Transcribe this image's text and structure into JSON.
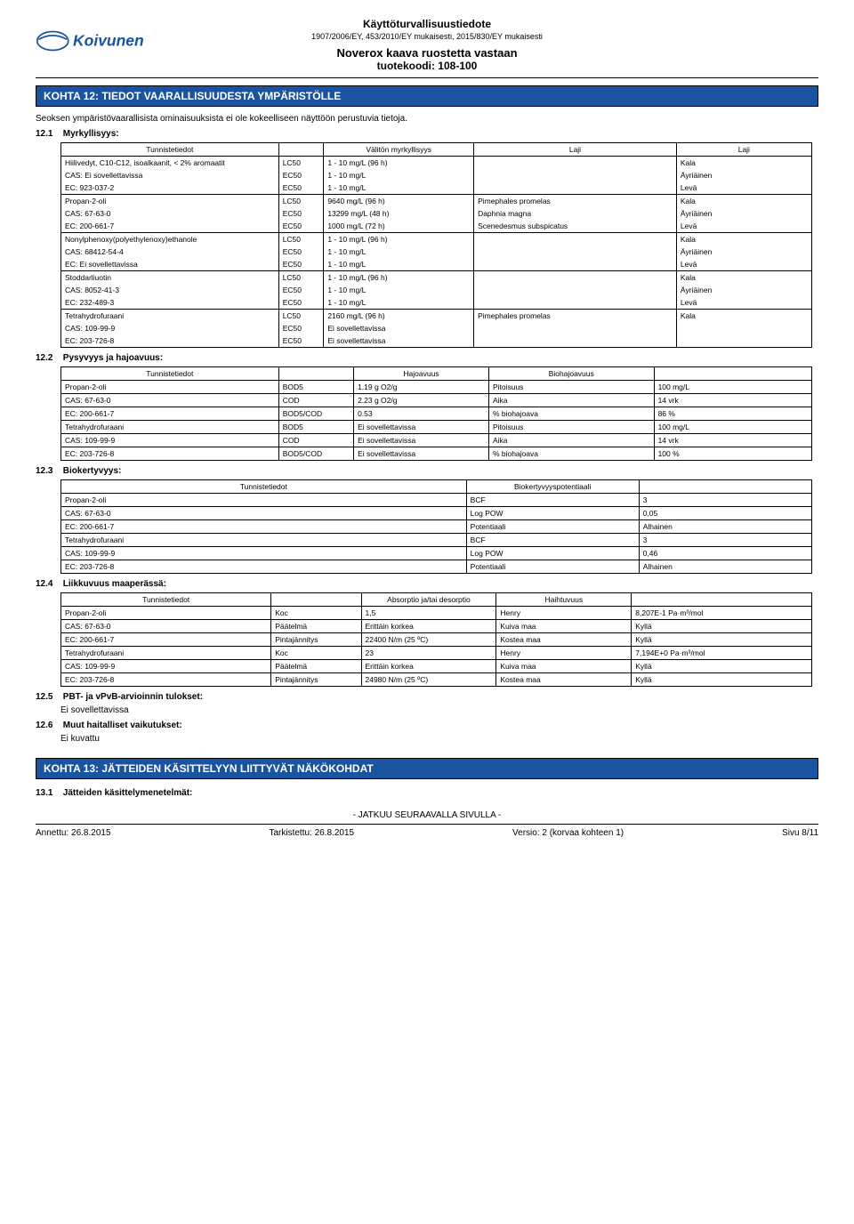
{
  "header": {
    "title1": "Käyttöturvallisuustiedote",
    "subtitle": "1907/2006/EY, 453/2010/EY mukaisesti, 2015/830/EY mukaisesti",
    "product": "Noverox kaava ruostetta vastaan",
    "code": "tuotekoodi: 108-100",
    "logo_text": "Koivunen"
  },
  "section12": {
    "bar": "KOHTA 12: TIEDOT VAARALLISUUDESTA YMPÄRISTÖLLE",
    "intro": "Seoksen ympäristövaarallisista ominaisuuksista ei ole kokeelliseen näyttöön perustuvia tietoja.",
    "s1": {
      "num": "12.1",
      "title": "Myrkyllisyys:"
    },
    "tox_head": {
      "id": "Tunnistetiedot",
      "val": "Välitön myrkyllisyys",
      "sp": "Laji",
      "g": "Laji"
    },
    "tox": [
      {
        "rows": [
          {
            "id": "Hiilivedyt, C10-C12, isoalkaanit, < 2% aromaatit",
            "t": "LC50",
            "v": "1 - 10 mg/L (96 h)",
            "sp": "",
            "g": "Kala"
          },
          {
            "id": "CAS: Ei sovellettavissa",
            "t": "EC50",
            "v": "1 - 10 mg/L",
            "sp": "",
            "g": "Äyriäinen"
          },
          {
            "id": "EC: 923-037-2",
            "t": "EC50",
            "v": "1 - 10 mg/L",
            "sp": "",
            "g": "Levä"
          }
        ]
      },
      {
        "rows": [
          {
            "id": "Propan-2-oli",
            "t": "LC50",
            "v": "9640 mg/L (96 h)",
            "sp": "Pimephales promelas",
            "g": "Kala"
          },
          {
            "id": "CAS: 67-63-0",
            "t": "EC50",
            "v": "13299 mg/L (48 h)",
            "sp": "Daphnia magna",
            "g": "Äyriäinen"
          },
          {
            "id": "EC: 200-661-7",
            "t": "EC50",
            "v": "1000 mg/L (72 h)",
            "sp": "Scenedesmus subspicatus",
            "g": "Levä"
          }
        ]
      },
      {
        "rows": [
          {
            "id": "Nonylphenoxy(polyethylenoxy)ethanole",
            "t": "LC50",
            "v": "1 - 10 mg/L (96 h)",
            "sp": "",
            "g": "Kala"
          },
          {
            "id": "CAS: 68412-54-4",
            "t": "EC50",
            "v": "1 - 10 mg/L",
            "sp": "",
            "g": "Äyriäinen"
          },
          {
            "id": "EC: Ei sovellettavissa",
            "t": "EC50",
            "v": "1 - 10 mg/L",
            "sp": "",
            "g": "Levä"
          }
        ]
      },
      {
        "rows": [
          {
            "id": "Stoddarliuotin",
            "t": "LC50",
            "v": "1 - 10 mg/L (96 h)",
            "sp": "",
            "g": "Kala"
          },
          {
            "id": "CAS: 8052-41-3",
            "t": "EC50",
            "v": "1 - 10 mg/L",
            "sp": "",
            "g": "Äyriäinen"
          },
          {
            "id": "EC: 232-489-3",
            "t": "EC50",
            "v": "1 - 10 mg/L",
            "sp": "",
            "g": "Levä"
          }
        ]
      },
      {
        "rows": [
          {
            "id": "Tetrahydrofuraani",
            "t": "LC50",
            "v": "2160 mg/L (96 h)",
            "sp": "Pimephales promelas",
            "g": "Kala"
          },
          {
            "id": "CAS: 109-99-9",
            "t": "EC50",
            "v": "Ei sovellettavissa",
            "sp": "",
            "g": ""
          },
          {
            "id": "EC: 203-726-8",
            "t": "EC50",
            "v": "Ei sovellettavissa",
            "sp": "",
            "g": ""
          }
        ]
      }
    ],
    "s2": {
      "num": "12.2",
      "title": "Pysyvyys ja hajoavuus:"
    },
    "deg_head": {
      "id": "Tunnistetiedot",
      "h": "Hajoavuus",
      "b": "Biohajoavuus"
    },
    "deg": [
      {
        "rows": [
          {
            "id": "Propan-2-oli",
            "t": "BOD5",
            "v": "1.19 g O2/g",
            "bl": "Pitoisuus",
            "bv": "100 mg/L"
          },
          {
            "id": "CAS: 67-63-0",
            "t": "COD",
            "v": "2.23 g O2/g",
            "bl": "Aika",
            "bv": "14 vrk"
          },
          {
            "id": "EC: 200-661-7",
            "t": "BOD5/COD",
            "v": "0.53",
            "bl": "% biohajoava",
            "bv": "86 %"
          }
        ]
      },
      {
        "rows": [
          {
            "id": "Tetrahydrofuraani",
            "t": "BOD5",
            "v": "Ei sovellettavissa",
            "bl": "Pitoisuus",
            "bv": "100 mg/L"
          },
          {
            "id": "CAS: 109-99-9",
            "t": "COD",
            "v": "Ei sovellettavissa",
            "bl": "Aika",
            "bv": "14 vrk"
          },
          {
            "id": "EC: 203-726-8",
            "t": "BOD5/COD",
            "v": "Ei sovellettavissa",
            "bl": "% biohajoava",
            "bv": "100 %"
          }
        ]
      }
    ],
    "s3": {
      "num": "12.3",
      "title": "Biokertyvyys:"
    },
    "bio_head": {
      "id": "Tunnistetiedot",
      "p": "Biokertyvyyspotentiaali"
    },
    "bio": [
      {
        "rows": [
          {
            "id": "Propan-2-oli",
            "l": "BCF",
            "v": "3"
          },
          {
            "id": "CAS: 67-63-0",
            "l": "Log POW",
            "v": "0,05"
          },
          {
            "id": "EC: 200-661-7",
            "l": "Potentiaali",
            "v": "Alhainen"
          }
        ]
      },
      {
        "rows": [
          {
            "id": "Tetrahydrofuraani",
            "l": "BCF",
            "v": "3"
          },
          {
            "id": "CAS: 109-99-9",
            "l": "Log POW",
            "v": "0,46"
          },
          {
            "id": "EC: 203-726-8",
            "l": "Potentiaali",
            "v": "Alhainen"
          }
        ]
      }
    ],
    "s4": {
      "num": "12.4",
      "title": "Liikkuvuus maaperässä:"
    },
    "mob_head": {
      "id": "Tunnistetiedot",
      "a": "Absorptio ja/tai desorptio",
      "h": "Haihtuvuus"
    },
    "mob": [
      {
        "rows": [
          {
            "id": "Propan-2-oli",
            "al": "Koc",
            "av": "1,5",
            "hl": "Henry",
            "hv": "8,207E-1 Pa·m³/mol"
          },
          {
            "id": "CAS: 67-63-0",
            "al": "Päätelmä",
            "av": "Erittäin korkea",
            "hl": "Kuiva maa",
            "hv": "Kyllä"
          },
          {
            "id": "EC: 200-661-7",
            "al": "Pintajännitys",
            "av": "22400 N/m  (25 ºC)",
            "hl": "Kostea maa",
            "hv": "Kyllä"
          }
        ]
      },
      {
        "rows": [
          {
            "id": "Tetrahydrofuraani",
            "al": "Koc",
            "av": "23",
            "hl": "Henry",
            "hv": "7,194E+0 Pa·m³/mol"
          },
          {
            "id": "CAS: 109-99-9",
            "al": "Päätelmä",
            "av": "Erittäin korkea",
            "hl": "Kuiva maa",
            "hv": "Kyllä"
          },
          {
            "id": "EC: 203-726-8",
            "al": "Pintajännitys",
            "av": "24980 N/m  (25 ºC)",
            "hl": "Kostea maa",
            "hv": "Kyllä"
          }
        ]
      }
    ],
    "s5": {
      "num": "12.5",
      "title": "PBT- ja vPvB-arvioinnin tulokset:",
      "text": "Ei sovellettavissa"
    },
    "s6": {
      "num": "12.6",
      "title": "Muut haitalliset vaikutukset:",
      "text": "Ei kuvattu"
    }
  },
  "section13": {
    "bar": "KOHTA 13: JÄTTEIDEN KÄSITTELYYN LIITTYVÄT NÄKÖKOHDAT",
    "s1": {
      "num": "13.1",
      "title": "Jätteiden käsittelymenetelmät:"
    }
  },
  "footer": {
    "cont": "- JATKUU SEURAAVALLA SIVULLA -",
    "issued": "Annettu: 26.8.2015",
    "checked": "Tarkistettu: 26.8.2015",
    "version": "Versio: 2 (korvaa kohteen 1)",
    "page": "Sivu 8/11"
  }
}
